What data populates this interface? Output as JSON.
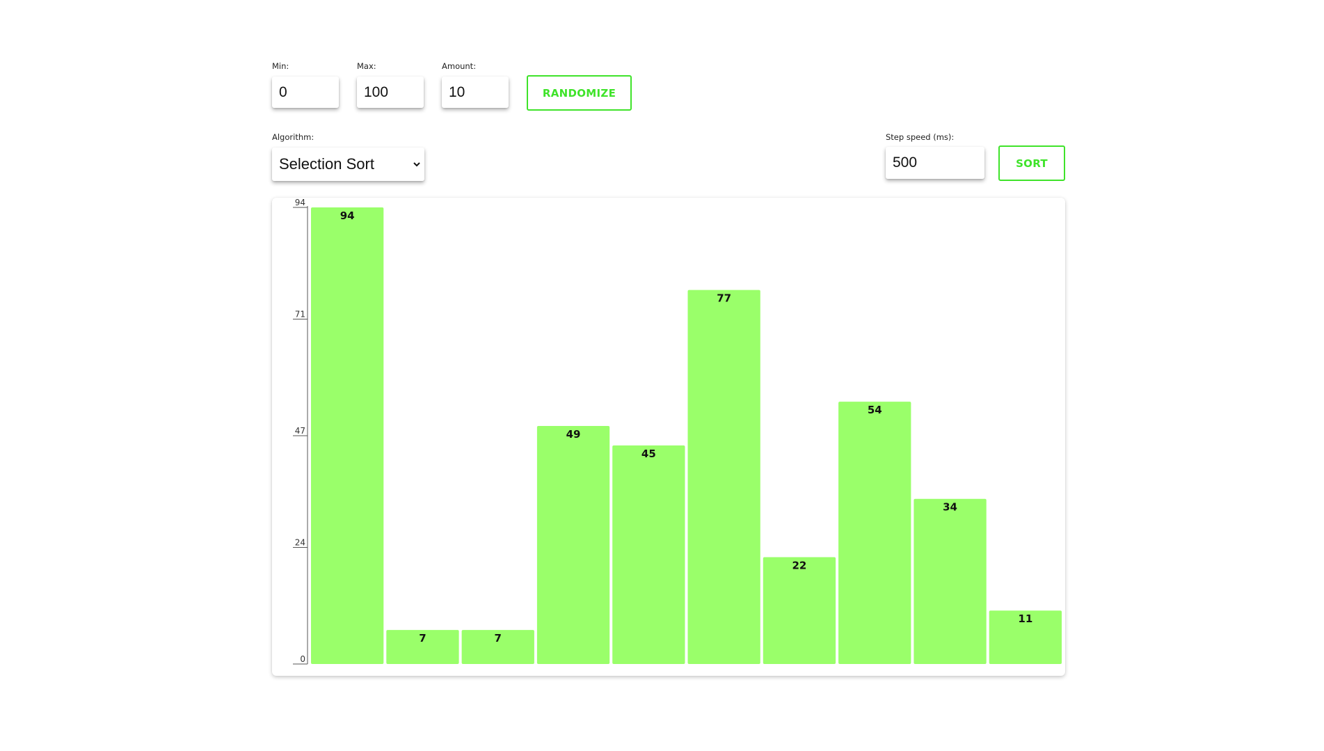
{
  "controls": {
    "min": {
      "label": "Min:",
      "value": "0"
    },
    "max": {
      "label": "Max:",
      "value": "100"
    },
    "amount": {
      "label": "Amount:",
      "value": "10"
    },
    "randomize_label": "RANDOMIZE",
    "algorithm": {
      "label": "Algorithm:",
      "selected": "Selection Sort"
    },
    "step_speed": {
      "label": "Step speed (ms):",
      "value": "500"
    },
    "sort_label": "SORT"
  },
  "colors": {
    "accent": "#3fe32a",
    "bar_fill": "#9aff6a",
    "text": "#111111"
  },
  "icons": {
    "select_arrow": "chevron-down-icon"
  },
  "chart_data": {
    "type": "bar",
    "values": [
      94,
      7,
      7,
      49,
      45,
      77,
      22,
      54,
      34,
      11
    ],
    "data_labels": [
      "94",
      "7",
      "7",
      "49",
      "45",
      "77",
      "22",
      "54",
      "34",
      "11"
    ],
    "y_ticks": [
      0,
      24,
      47,
      71,
      94
    ],
    "y_tick_labels": [
      "0",
      "24",
      "47",
      "71",
      "94"
    ],
    "ylim": [
      0,
      94
    ],
    "title": "",
    "xlabel": "",
    "ylabel": "",
    "grid": false
  }
}
